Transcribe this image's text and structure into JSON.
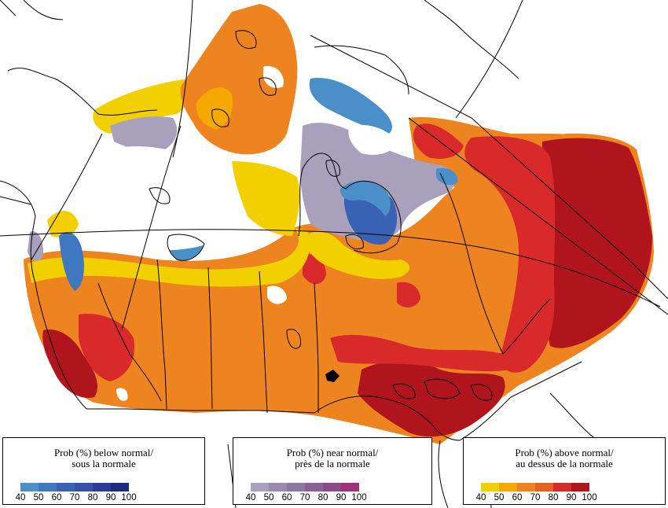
{
  "legends": [
    {
      "id": "below",
      "line1": "Prob (%) below normal/",
      "line2": "sous la normale",
      "ticks": [
        "40",
        "50",
        "60",
        "70",
        "80",
        "90",
        "100"
      ],
      "colors": [
        "#4a8fc8",
        "#3f78be",
        "#3a62b4",
        "#3550a8",
        "#2a3c96",
        "#1c2a80"
      ]
    },
    {
      "id": "near",
      "line1": "Prob (%) near normal/",
      "line2": "près de la normale",
      "ticks": [
        "40",
        "50",
        "60",
        "70",
        "80",
        "90",
        "100"
      ],
      "colors": [
        "#a8a0bc",
        "#9a8ab0",
        "#8e76a4",
        "#8a5f98",
        "#8c4a8c",
        "#a03078"
      ]
    },
    {
      "id": "above",
      "line1": "Prob (%) above normal/",
      "line2": "au dessus de la normale",
      "ticks": [
        "40",
        "50",
        "60",
        "70",
        "80",
        "90",
        "100"
      ],
      "colors": [
        "#f2d000",
        "#f5a800",
        "#ee8420",
        "#e86020",
        "#d82a2a",
        "#b0141c"
      ]
    }
  ],
  "map_colors": {
    "above_40": "#f2d000",
    "above_50": "#f5a800",
    "above_60": "#ee8420",
    "above_70": "#e86020",
    "above_80": "#d82a2a",
    "above_90": "#b0141c",
    "near_40": "#a8a0bc",
    "near_50": "#9a8ab0",
    "below_40": "#4a8fc8",
    "below_60": "#3a62b4"
  }
}
